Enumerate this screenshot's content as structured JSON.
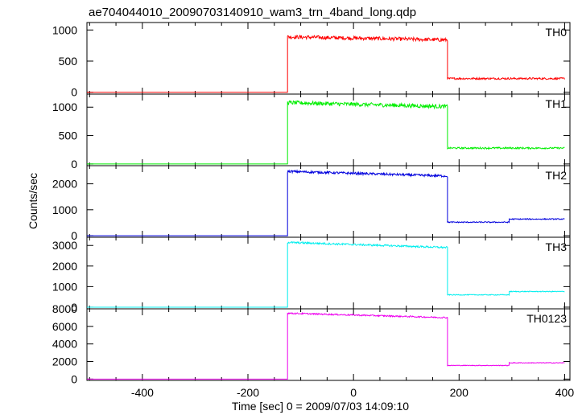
{
  "title": "ae704044010_20090703140910_wam3_trn_4band_long.qdp",
  "ylabel": "Counts/sec",
  "xlabel": "Time [sec] 0 = 2009/07/03 14:09:10",
  "chart_data": {
    "type": "line",
    "title": "ae704044010_20090703140910_wam3_trn_4band_long.qdp",
    "xlabel": "Time [sec] 0 = 2009/07/03 14:09:10",
    "ylabel": "Counts/sec",
    "xlim": [
      -505,
      410
    ],
    "x_ticks": [
      -400,
      -200,
      0,
      200,
      400
    ],
    "grid": false,
    "panels": [
      {
        "name": "TH0",
        "color": "#ff0000",
        "ylim": [
          -30,
          1120
        ],
        "y_ticks": [
          0,
          500,
          1000
        ],
        "segments": [
          {
            "x_start": -505,
            "x_end": -125,
            "level": 0,
            "noise": 0
          },
          {
            "x_start": -125,
            "x_end": 178,
            "level_start": 890,
            "level_end": 840,
            "noise": 30
          },
          {
            "x_start": 178,
            "x_end": 400,
            "level": 220,
            "noise": 15
          }
        ]
      },
      {
        "name": "TH1",
        "color": "#00ee00",
        "ylim": [
          -30,
          1230
        ],
        "y_ticks": [
          0,
          500,
          1000
        ],
        "segments": [
          {
            "x_start": -505,
            "x_end": -125,
            "level": 0,
            "noise": 0
          },
          {
            "x_start": -125,
            "x_end": 178,
            "level_start": 1080,
            "level_end": 1010,
            "noise": 35
          },
          {
            "x_start": 178,
            "x_end": 400,
            "level": 280,
            "noise": 15
          }
        ]
      },
      {
        "name": "TH2",
        "color": "#0000dd",
        "ylim": [
          -60,
          2700
        ],
        "y_ticks": [
          0,
          1000,
          2000
        ],
        "segments": [
          {
            "x_start": -505,
            "x_end": -125,
            "level": 0,
            "noise": 0
          },
          {
            "x_start": -125,
            "x_end": 178,
            "level_start": 2480,
            "level_end": 2300,
            "noise": 45
          },
          {
            "x_start": 178,
            "x_end": 295,
            "level": 520,
            "noise": 20
          },
          {
            "x_start": 295,
            "x_end": 400,
            "level": 640,
            "noise": 20
          }
        ]
      },
      {
        "name": "TH3",
        "color": "#00eeee",
        "ylim": [
          -80,
          3400
        ],
        "y_ticks": [
          0,
          1000,
          2000,
          3000
        ],
        "segments": [
          {
            "x_start": -505,
            "x_end": -125,
            "level": 0,
            "noise": 0
          },
          {
            "x_start": -125,
            "x_end": 178,
            "level_start": 3150,
            "level_end": 2900,
            "noise": 45
          },
          {
            "x_start": 178,
            "x_end": 295,
            "level": 600,
            "noise": 20
          },
          {
            "x_start": 295,
            "x_end": 400,
            "level": 760,
            "noise": 20
          }
        ]
      },
      {
        "name": "TH0123",
        "color": "#ee00ee",
        "ylim": [
          -150,
          8000
        ],
        "y_ticks": [
          0,
          2000,
          4000,
          6000,
          8000
        ],
        "segments": [
          {
            "x_start": -505,
            "x_end": -125,
            "level": 0,
            "noise": 0
          },
          {
            "x_start": -125,
            "x_end": 178,
            "level_start": 7500,
            "level_end": 7000,
            "noise": 80
          },
          {
            "x_start": 178,
            "x_end": 295,
            "level": 1550,
            "noise": 40
          },
          {
            "x_start": 295,
            "x_end": 400,
            "level": 1850,
            "noise": 40
          }
        ]
      }
    ]
  }
}
